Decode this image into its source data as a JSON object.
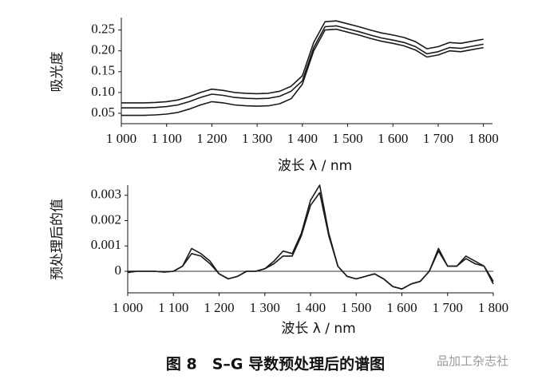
{
  "chart_data": [
    {
      "type": "line",
      "ylabel": "吸光度",
      "xlabel": "波长 λ / nm",
      "x": [
        1000,
        1025,
        1050,
        1075,
        1100,
        1125,
        1150,
        1175,
        1200,
        1225,
        1250,
        1275,
        1300,
        1325,
        1350,
        1375,
        1400,
        1425,
        1450,
        1475,
        1500,
        1525,
        1550,
        1575,
        1600,
        1625,
        1650,
        1675,
        1700,
        1725,
        1750,
        1775,
        1800
      ],
      "series": [
        {
          "color": "#1a1a1a",
          "values": [
            0.075,
            0.075,
            0.075,
            0.076,
            0.078,
            0.082,
            0.09,
            0.1,
            0.108,
            0.105,
            0.1,
            0.098,
            0.097,
            0.098,
            0.103,
            0.115,
            0.14,
            0.22,
            0.27,
            0.272,
            0.265,
            0.258,
            0.25,
            0.243,
            0.238,
            0.232,
            0.222,
            0.205,
            0.21,
            0.22,
            0.218,
            0.223,
            0.228
          ]
        },
        {
          "color": "#1a1a1a",
          "values": [
            0.063,
            0.063,
            0.063,
            0.064,
            0.066,
            0.07,
            0.078,
            0.088,
            0.096,
            0.093,
            0.088,
            0.086,
            0.085,
            0.086,
            0.091,
            0.103,
            0.128,
            0.208,
            0.258,
            0.26,
            0.253,
            0.246,
            0.238,
            0.231,
            0.226,
            0.22,
            0.21,
            0.193,
            0.198,
            0.208,
            0.206,
            0.211,
            0.216
          ]
        },
        {
          "color": "#1a1a1a",
          "values": [
            0.045,
            0.045,
            0.045,
            0.046,
            0.048,
            0.052,
            0.06,
            0.07,
            0.078,
            0.075,
            0.07,
            0.068,
            0.067,
            0.068,
            0.073,
            0.085,
            0.12,
            0.2,
            0.25,
            0.252,
            0.245,
            0.238,
            0.23,
            0.223,
            0.218,
            0.212,
            0.202,
            0.185,
            0.19,
            0.2,
            0.198,
            0.203,
            0.208
          ]
        }
      ],
      "xlim": [
        1000,
        1820
      ],
      "xticks": [
        {
          "value": 1000,
          "label": "1 000"
        },
        {
          "value": 1100,
          "label": "1 100"
        },
        {
          "value": 1200,
          "label": "1 200"
        },
        {
          "value": 1300,
          "label": "1 300"
        },
        {
          "value": 1400,
          "label": "1 400"
        },
        {
          "value": 1500,
          "label": "1 500"
        },
        {
          "value": 1600,
          "label": "1 600"
        },
        {
          "value": 1700,
          "label": "1 700"
        },
        {
          "value": 1800,
          "label": "1 800"
        }
      ],
      "ylim": [
        0.025,
        0.28
      ],
      "yticks": [
        0.05,
        {
          "value": 0.1,
          "label": "0.10"
        },
        0.15,
        {
          "value": 0.2,
          "label": "0.20"
        },
        0.25
      ],
      "zero_line": false
    },
    {
      "type": "line",
      "ylabel": "预处理后的值",
      "xlabel": "波长 λ / nm",
      "x": [
        1000,
        1020,
        1040,
        1060,
        1080,
        1100,
        1120,
        1140,
        1160,
        1180,
        1200,
        1220,
        1240,
        1260,
        1280,
        1300,
        1320,
        1340,
        1360,
        1380,
        1400,
        1420,
        1440,
        1460,
        1480,
        1500,
        1520,
        1540,
        1560,
        1580,
        1600,
        1620,
        1640,
        1660,
        1680,
        1700,
        1720,
        1740,
        1760,
        1780,
        1800
      ],
      "series": [
        {
          "color": "#1a1a1a",
          "values": [
            0,
            0,
            0,
            0,
            -3e-05,
            0,
            0.0002,
            0.0009,
            0.0007,
            0.0004,
            -0.0001,
            -0.0003,
            -0.0002,
            0,
            0,
            0.0001,
            0.0004,
            0.0008,
            0.0007,
            0.0015,
            0.0028,
            0.0034,
            0.0015,
            0.0002,
            -0.0002,
            -0.0003,
            -0.0002,
            -0.0001,
            -0.0003,
            -0.0006,
            -0.0007,
            -0.0005,
            -0.0004,
            0,
            0.0009,
            0.0002,
            0.0002,
            0.0006,
            0.0004,
            0.0002,
            -0.0005
          ]
        },
        {
          "color": "#1a1a1a",
          "values": [
            -5e-05,
            0,
            0,
            0,
            -3e-05,
            0,
            0.0002,
            0.0007,
            0.0006,
            0.0003,
            -0.0001,
            -0.0003,
            -0.0002,
            0,
            0,
            0.0001,
            0.0003,
            0.0006,
            0.0006,
            0.0014,
            0.0026,
            0.0031,
            0.0014,
            0.0002,
            -0.0002,
            -0.0003,
            -0.0002,
            -0.0001,
            -0.0003,
            -0.0006,
            -0.0007,
            -0.0005,
            -0.0004,
            0,
            0.0008,
            0.0002,
            0.0002,
            0.0005,
            0.0003,
            0.0002,
            -0.0004
          ]
        }
      ],
      "xlim": [
        1000,
        1800
      ],
      "xticks": [
        {
          "value": 1000,
          "label": "1 000"
        },
        {
          "value": 1100,
          "label": "1 100"
        },
        {
          "value": 1200,
          "label": "1 200"
        },
        {
          "value": 1300,
          "label": "1 300"
        },
        {
          "value": 1400,
          "label": "1 400"
        },
        {
          "value": 1500,
          "label": "1 500"
        },
        {
          "value": 1600,
          "label": "1 600"
        },
        {
          "value": 1700,
          "label": "1 700"
        },
        {
          "value": 1800,
          "label": "1 800"
        }
      ],
      "ylim": [
        -0.00085,
        0.0034
      ],
      "yticks": [
        0,
        0.001,
        0.002,
        0.003
      ],
      "zero_line": true
    }
  ],
  "caption": "图 8　S–G 导数预处理后的谱图",
  "watermark": "品加工杂志社"
}
